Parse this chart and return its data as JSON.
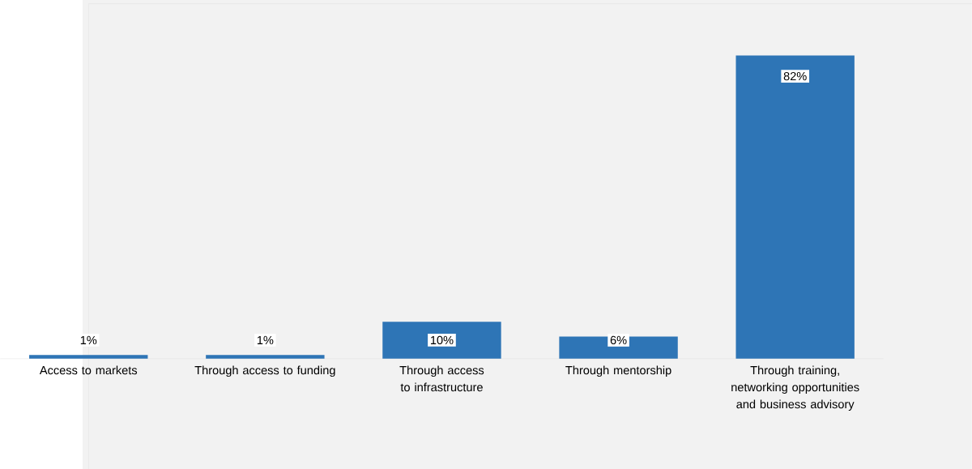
{
  "chart_data": {
    "type": "bar",
    "categories": [
      "Access to markets",
      "Through access to funding",
      "Through access to infrastructure",
      "Through mentorship",
      "Through training, networking opportunities and business advisory"
    ],
    "values": [
      1,
      1,
      10,
      6,
      82
    ],
    "value_labels": [
      "1%",
      "1%",
      "10%",
      "6%",
      "82%"
    ],
    "color": "#2e75b6",
    "ylim": [
      0,
      96
    ]
  }
}
